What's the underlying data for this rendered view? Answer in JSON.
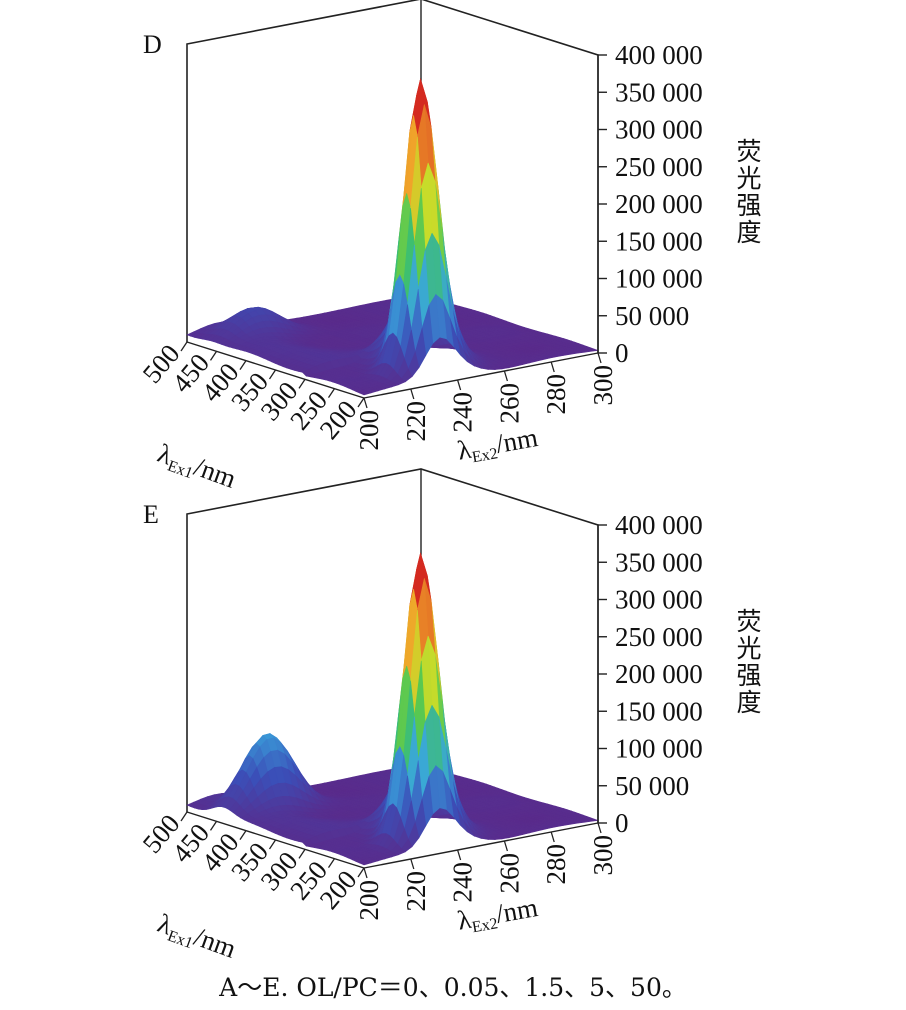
{
  "figure": {
    "caption": "A～E. OL/PC＝0、0.05、1.5、5、50。"
  },
  "colors": {
    "colormap": [
      "#5a2a8a",
      "#3b4fb8",
      "#3aa6dd",
      "#3fc45a",
      "#c8dc2a",
      "#f0a52a",
      "#d42a20"
    ]
  },
  "chart_data": [
    {
      "panel_label": "D",
      "type": "surface3d",
      "z_label": "荧光强度",
      "x_label": {
        "base": "λ",
        "sub": "Ex1",
        "unit": "/nm"
      },
      "y_label": {
        "base": "λ",
        "sub": "Ex2",
        "unit": "/nm"
      },
      "x_ticks": [
        "500",
        "450",
        "400",
        "350",
        "300",
        "250",
        "200"
      ],
      "y_ticks": [
        "200",
        "220",
        "240",
        "260",
        "280",
        "300"
      ],
      "z_ticks": [
        "0",
        "50 000",
        "100 000",
        "150 000",
        "200 000",
        "250 000",
        "300 000",
        "350 000",
        "400 000"
      ],
      "x_range": [
        200,
        500
      ],
      "y_range": [
        200,
        300
      ],
      "z_range": [
        0,
        400000
      ],
      "peaks": [
        {
          "x": 232,
          "y": 232,
          "z": 350000,
          "note": "main peak"
        },
        {
          "x": 460,
          "y": 220,
          "z": 30000,
          "note": "secondary ridge"
        }
      ]
    },
    {
      "panel_label": "E",
      "type": "surface3d",
      "z_label": "荧光强度",
      "x_label": {
        "base": "λ",
        "sub": "Ex1",
        "unit": "/nm"
      },
      "y_label": {
        "base": "λ",
        "sub": "Ex2",
        "unit": "/nm"
      },
      "x_ticks": [
        "500",
        "450",
        "400",
        "350",
        "300",
        "250",
        "200"
      ],
      "y_ticks": [
        "200",
        "220",
        "240",
        "260",
        "280",
        "300"
      ],
      "z_ticks": [
        "0",
        "50 000",
        "100 000",
        "150 000",
        "200 000",
        "250 000",
        "300 000",
        "350 000",
        "400 000"
      ],
      "x_range": [
        200,
        500
      ],
      "y_range": [
        200,
        300
      ],
      "z_range": [
        0,
        400000
      ],
      "peaks": [
        {
          "x": 232,
          "y": 232,
          "z": 345000,
          "note": "main peak"
        },
        {
          "x": 440,
          "y": 220,
          "z": 95000,
          "note": "secondary peak"
        }
      ]
    }
  ]
}
